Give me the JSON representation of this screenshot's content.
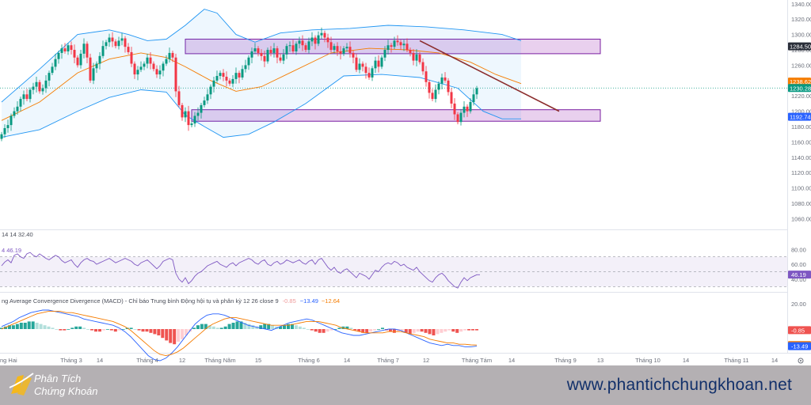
{
  "chart_data": {
    "type": "candlestick",
    "title": "",
    "price_axis": {
      "ticks": [
        1060,
        1080,
        1100,
        1120,
        1140,
        1160,
        1180,
        1200,
        1220,
        1240,
        1260,
        1280,
        1300,
        1320,
        1340
      ],
      "tick_labels": [
        "1060.00",
        "1080.00",
        "1100.00",
        "1120.00",
        "1140.00",
        "1160.00",
        "1180.00",
        "1200.00",
        "1220.00",
        "1240.00",
        "1260.00",
        "1280.00",
        "1300.00",
        "1320.00",
        "1340.00"
      ],
      "range": [
        1046,
        1345
      ],
      "badges": [
        {
          "value": 1284.5,
          "label": "1284.50",
          "color": "#2a2e39"
        },
        {
          "value": 1238.62,
          "label": "1238.62",
          "color": "#f57c00"
        },
        {
          "value": 1230.28,
          "label": "1230.28",
          "color": "#089981"
        },
        {
          "value": 1192.74,
          "label": "1192.74",
          "color": "#2962ff"
        }
      ]
    },
    "time_axis": {
      "labels": [
        {
          "t": 0,
          "text": "ng Hai"
        },
        {
          "t": 22,
          "text": "Tháng 3"
        },
        {
          "t": 31,
          "text": "14"
        },
        {
          "t": 46,
          "text": "Tháng 4"
        },
        {
          "t": 57,
          "text": "12"
        },
        {
          "t": 69,
          "text": "Tháng Năm"
        },
        {
          "t": 81,
          "text": "15"
        },
        {
          "t": 97,
          "text": "Tháng 6"
        },
        {
          "t": 109,
          "text": "14"
        },
        {
          "t": 122,
          "text": "Tháng 7"
        },
        {
          "t": 134,
          "text": "12"
        },
        {
          "t": 150,
          "text": "Tháng Tám"
        },
        {
          "t": 161,
          "text": "14"
        },
        {
          "t": 178,
          "text": "Tháng 9"
        },
        {
          "t": 189,
          "text": "13"
        },
        {
          "t": 204,
          "text": "Tháng 10"
        },
        {
          "t": 216,
          "text": "14"
        },
        {
          "t": 232,
          "text": "Tháng 11"
        },
        {
          "t": 244,
          "text": "14"
        }
      ]
    },
    "zones": [
      {
        "name": "resistance",
        "t_start": 58,
        "t_end": 189,
        "low": 1275,
        "high": 1294
      },
      {
        "name": "support",
        "t_start": 60,
        "t_end": 189,
        "low": 1187,
        "high": 1202
      }
    ],
    "trendline": {
      "t1": 132,
      "p1": 1292,
      "t2": 176,
      "p2": 1200
    },
    "candles": [
      {
        "c": 1170
      },
      {
        "c": 1178
      },
      {
        "c": 1182
      },
      {
        "c": 1194
      },
      {
        "c": 1200
      },
      {
        "c": 1206
      },
      {
        "c": 1216
      },
      {
        "c": 1222
      },
      {
        "c": 1216
      },
      {
        "c": 1228
      },
      {
        "c": 1232
      },
      {
        "c": 1238
      },
      {
        "c": 1226
      },
      {
        "c": 1230
      },
      {
        "c": 1240
      },
      {
        "c": 1250
      },
      {
        "c": 1258
      },
      {
        "c": 1268
      },
      {
        "c": 1276
      },
      {
        "c": 1282
      },
      {
        "c": 1278
      },
      {
        "c": 1286
      },
      {
        "c": 1280
      },
      {
        "c": 1270
      },
      {
        "c": 1260
      },
      {
        "c": 1275
      },
      {
        "c": 1288
      },
      {
        "c": 1270
      },
      {
        "c": 1240
      },
      {
        "c": 1256
      },
      {
        "c": 1262
      },
      {
        "c": 1272
      },
      {
        "c": 1285
      },
      {
        "c": 1290
      },
      {
        "c": 1296
      },
      {
        "c": 1291
      },
      {
        "c": 1285
      },
      {
        "c": 1292
      },
      {
        "c": 1295
      },
      {
        "c": 1284
      },
      {
        "c": 1277
      },
      {
        "c": 1262
      },
      {
        "c": 1248
      },
      {
        "c": 1254
      },
      {
        "c": 1258
      },
      {
        "c": 1262
      },
      {
        "c": 1270
      },
      {
        "c": 1262
      },
      {
        "c": 1255
      },
      {
        "c": 1248
      },
      {
        "c": 1253
      },
      {
        "c": 1262
      },
      {
        "c": 1268
      },
      {
        "c": 1276
      },
      {
        "c": 1270
      },
      {
        "c": 1226
      },
      {
        "c": 1208
      },
      {
        "c": 1192
      },
      {
        "c": 1200
      },
      {
        "c": 1182
      },
      {
        "c": 1184
      },
      {
        "c": 1194
      },
      {
        "c": 1198
      },
      {
        "c": 1208
      },
      {
        "c": 1214
      },
      {
        "c": 1222
      },
      {
        "c": 1232
      },
      {
        "c": 1240
      },
      {
        "c": 1246
      },
      {
        "c": 1250
      },
      {
        "c": 1245
      },
      {
        "c": 1240
      },
      {
        "c": 1236
      },
      {
        "c": 1242
      },
      {
        "c": 1250
      },
      {
        "c": 1244
      },
      {
        "c": 1255
      },
      {
        "c": 1260
      },
      {
        "c": 1270
      },
      {
        "c": 1278
      },
      {
        "c": 1282
      },
      {
        "c": 1276
      },
      {
        "c": 1272
      },
      {
        "c": 1265
      },
      {
        "c": 1280
      },
      {
        "c": 1276
      },
      {
        "c": 1282
      },
      {
        "c": 1270
      },
      {
        "c": 1266
      },
      {
        "c": 1274
      },
      {
        "c": 1285
      },
      {
        "c": 1286
      },
      {
        "c": 1278
      },
      {
        "c": 1288
      },
      {
        "c": 1292
      },
      {
        "c": 1286
      },
      {
        "c": 1280
      },
      {
        "c": 1291
      },
      {
        "c": 1296
      },
      {
        "c": 1288
      },
      {
        "c": 1299
      },
      {
        "c": 1302
      },
      {
        "c": 1296
      },
      {
        "c": 1290
      },
      {
        "c": 1280
      },
      {
        "c": 1285
      },
      {
        "c": 1278
      },
      {
        "c": 1275
      },
      {
        "c": 1282
      },
      {
        "c": 1284
      },
      {
        "c": 1276
      },
      {
        "c": 1270
      },
      {
        "c": 1254
      },
      {
        "c": 1262
      },
      {
        "c": 1258
      },
      {
        "c": 1250
      },
      {
        "c": 1244
      },
      {
        "c": 1256
      },
      {
        "c": 1266
      },
      {
        "c": 1258
      },
      {
        "c": 1270
      },
      {
        "c": 1280
      },
      {
        "c": 1286
      },
      {
        "c": 1284
      },
      {
        "c": 1292
      },
      {
        "c": 1290
      },
      {
        "c": 1286
      },
      {
        "c": 1288
      },
      {
        "c": 1280
      },
      {
        "c": 1276
      },
      {
        "c": 1266
      },
      {
        "c": 1274
      },
      {
        "c": 1264
      },
      {
        "c": 1252
      },
      {
        "c": 1238
      },
      {
        "c": 1224
      },
      {
        "c": 1216
      },
      {
        "c": 1228
      },
      {
        "c": 1236
      },
      {
        "c": 1244
      },
      {
        "c": 1240
      },
      {
        "c": 1225
      },
      {
        "c": 1210
      },
      {
        "c": 1196
      },
      {
        "c": 1186
      },
      {
        "c": 1198
      },
      {
        "c": 1206
      },
      {
        "c": 1200
      },
      {
        "c": 1212
      },
      {
        "c": 1222
      },
      {
        "c": 1230
      }
    ],
    "bollinger": {
      "upper": [
        [
          0,
          1212
        ],
        [
          12,
          1255
        ],
        [
          24,
          1300
        ],
        [
          34,
          1306
        ],
        [
          40,
          1300
        ],
        [
          46,
          1292
        ],
        [
          52,
          1294
        ],
        [
          58,
          1312
        ],
        [
          64,
          1333
        ],
        [
          68,
          1328
        ],
        [
          74,
          1300
        ],
        [
          80,
          1290
        ],
        [
          88,
          1302
        ],
        [
          98,
          1306
        ],
        [
          110,
          1308
        ],
        [
          122,
          1312
        ],
        [
          134,
          1310
        ],
        [
          146,
          1306
        ],
        [
          158,
          1300
        ],
        [
          164,
          1292
        ]
      ],
      "middle": [
        [
          0,
          1188
        ],
        [
          12,
          1212
        ],
        [
          24,
          1250
        ],
        [
          34,
          1268
        ],
        [
          44,
          1276
        ],
        [
          52,
          1270
        ],
        [
          58,
          1258
        ],
        [
          66,
          1240
        ],
        [
          74,
          1226
        ],
        [
          82,
          1232
        ],
        [
          92,
          1252
        ],
        [
          104,
          1276
        ],
        [
          116,
          1282
        ],
        [
          128,
          1280
        ],
        [
          138,
          1276
        ],
        [
          148,
          1264
        ],
        [
          156,
          1248
        ],
        [
          164,
          1236
        ]
      ],
      "lower": [
        [
          0,
          1166
        ],
        [
          12,
          1176
        ],
        [
          24,
          1200
        ],
        [
          34,
          1218
        ],
        [
          44,
          1228
        ],
        [
          52,
          1225
        ],
        [
          58,
          1195
        ],
        [
          64,
          1180
        ],
        [
          70,
          1166
        ],
        [
          78,
          1170
        ],
        [
          86,
          1186
        ],
        [
          96,
          1210
        ],
        [
          108,
          1246
        ],
        [
          120,
          1248
        ],
        [
          132,
          1244
        ],
        [
          144,
          1230
        ],
        [
          152,
          1200
        ],
        [
          158,
          1190
        ],
        [
          164,
          1190
        ]
      ]
    },
    "rsi": {
      "header": "14 14 32.40",
      "level_label": "46.19",
      "axis_ticks": [
        {
          "v": 80,
          "label": "80.00"
        },
        {
          "v": 60,
          "label": "60.00"
        },
        {
          "v": 40,
          "label": "40.00"
        }
      ],
      "badge": {
        "value": 46.19,
        "label": "46.19",
        "color": "#7e57c2"
      },
      "values": [
        58,
        63,
        66,
        62,
        72,
        74,
        70,
        68,
        74,
        76,
        72,
        70,
        74,
        71,
        68,
        66,
        69,
        72,
        70,
        65,
        62,
        64,
        66,
        60,
        56,
        62,
        66,
        68,
        65,
        64,
        60,
        62,
        64,
        66,
        68,
        65,
        62,
        64,
        66,
        68,
        66,
        64,
        60,
        58,
        62,
        64,
        66,
        62,
        58,
        54,
        58,
        64,
        66,
        68,
        66,
        48,
        40,
        36,
        42,
        34,
        38,
        44,
        48,
        50,
        54,
        58,
        60,
        62,
        64,
        60,
        58,
        56,
        60,
        62,
        58,
        62,
        64,
        66,
        68,
        66,
        62,
        60,
        64,
        66,
        60,
        58,
        62,
        64,
        60,
        62,
        66,
        64,
        62,
        64,
        66,
        62,
        60,
        64,
        66,
        60,
        66,
        68,
        62,
        56,
        52,
        56,
        50,
        48,
        52,
        54,
        50,
        46,
        42,
        48,
        46,
        44,
        40,
        46,
        52,
        50,
        56,
        60,
        62,
        60,
        64,
        62,
        58,
        60,
        56,
        54,
        52,
        56,
        50,
        46,
        42,
        38,
        36,
        42,
        46,
        48,
        44,
        38,
        34,
        30,
        28,
        36,
        42,
        38,
        42,
        44,
        46,
        46
      ]
    },
    "macd": {
      "header": "ng Average Convergence Divergence (MACD) - Chỉ báo Trung bình Động hội tụ và phân kỳ 12 26 close 9",
      "hist_value": "-0.85",
      "macd_value": "−13.49",
      "signal_value": "−12.64",
      "axis_ticks": [
        {
          "v": 20,
          "label": "20.00"
        }
      ],
      "badges": [
        {
          "value": -0.85,
          "label": "-0.85",
          "color": "#ef5350"
        },
        {
          "value": -12.64,
          "label": "-12.64",
          "color": "#f57c00"
        },
        {
          "value": -13.49,
          "label": "-13.49",
          "color": "#2962ff"
        }
      ],
      "histogram": [
        1,
        2,
        3,
        3,
        4,
        5,
        5,
        6,
        6,
        5,
        4,
        3,
        2,
        1,
        0,
        -1,
        -1,
        0,
        1,
        2,
        2,
        1,
        0,
        -1,
        -2,
        -2,
        -1,
        0,
        -1,
        -2,
        -1,
        0,
        1,
        1,
        0,
        -1,
        -2,
        -2,
        -3,
        -4,
        -5,
        -7,
        -9,
        -11,
        -12,
        -10,
        -8,
        -5,
        -2,
        1,
        3,
        4,
        4,
        3,
        2,
        1,
        1,
        2,
        4,
        5,
        6,
        6,
        5,
        4,
        3,
        2,
        3,
        4,
        4,
        3,
        2,
        2,
        3,
        4,
        4,
        3,
        2,
        1,
        0,
        -1,
        -2,
        -3,
        -3,
        -2,
        -1,
        0,
        1,
        2,
        2,
        1,
        -1,
        -2,
        -3,
        -3,
        -2,
        -1,
        0,
        1,
        -1,
        -2,
        -3,
        -2,
        -1,
        -3,
        -4,
        -3,
        -2,
        -2,
        -3,
        -4,
        -5,
        -4,
        -3,
        -2,
        -1,
        -2,
        -3,
        -2,
        -1,
        -1,
        -1,
        -1
      ],
      "macd_line": [
        2,
        4,
        6,
        9,
        11,
        13,
        14,
        15,
        15,
        14,
        13,
        12,
        11,
        10,
        8,
        7,
        6,
        5,
        4,
        3,
        1,
        -2,
        -6,
        -11,
        -16,
        -21,
        -24,
        -25,
        -23,
        -19,
        -14,
        -8,
        -2,
        4,
        8,
        11,
        12,
        12,
        11,
        9,
        7,
        5,
        3,
        2,
        1,
        0,
        -1,
        1,
        3,
        5,
        6,
        7,
        8,
        7,
        5,
        3,
        1,
        -1,
        -3,
        -4,
        -5,
        -5,
        -4,
        -3,
        -2,
        -1,
        0,
        0,
        -1,
        -3,
        -5,
        -7,
        -9,
        -11,
        -12,
        -13,
        -12,
        -13,
        -13,
        -14,
        -14,
        -13.49
      ],
      "signal_line": [
        0,
        2,
        4,
        6,
        8,
        10,
        12,
        13,
        14,
        14,
        14,
        13,
        13,
        12,
        11,
        10,
        9,
        8,
        7,
        6,
        4,
        2,
        -1,
        -5,
        -9,
        -13,
        -17,
        -20,
        -21,
        -20,
        -18,
        -15,
        -11,
        -7,
        -3,
        1,
        4,
        6,
        8,
        9,
        9,
        8,
        7,
        6,
        5,
        4,
        3,
        3,
        3,
        3,
        4,
        5,
        6,
        6,
        6,
        5,
        4,
        3,
        1,
        0,
        -1,
        -2,
        -3,
        -3,
        -3,
        -3,
        -2,
        -2,
        -2,
        -3,
        -4,
        -5,
        -6,
        -8,
        -9,
        -10,
        -11,
        -11,
        -12,
        -12,
        -12.5,
        -12.64
      ]
    }
  },
  "footer": {
    "brand_line1": "Phân Tích",
    "brand_line2": "Chứng Khoán",
    "website": "www.phantichchungkhoan.net"
  }
}
